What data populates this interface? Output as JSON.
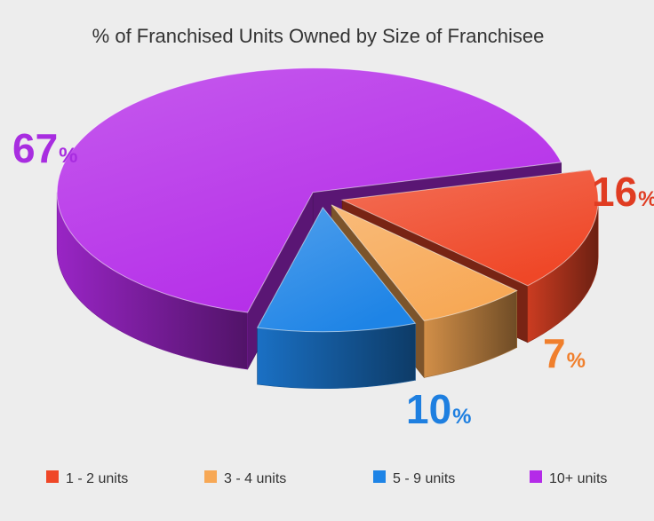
{
  "chart_data": {
    "type": "pie",
    "title": "% of Franchised Units Owned by Size of Franchisee",
    "categories": [
      "1 - 2 units",
      "3 - 4 units",
      "5 - 9 units",
      "10+ units"
    ],
    "values": [
      16,
      7,
      10,
      67
    ],
    "value_labels": [
      "16",
      "7",
      "10",
      "67"
    ],
    "percent_sign": "%",
    "colors": [
      "#ef4727",
      "#f7a855",
      "#1e84e6",
      "#b42be8"
    ],
    "label_colors": [
      "#e03c22",
      "#f07f2c",
      "#1e7fe0",
      "#a82de0"
    ],
    "legend_position": "bottom",
    "style": "3d-exploded"
  }
}
